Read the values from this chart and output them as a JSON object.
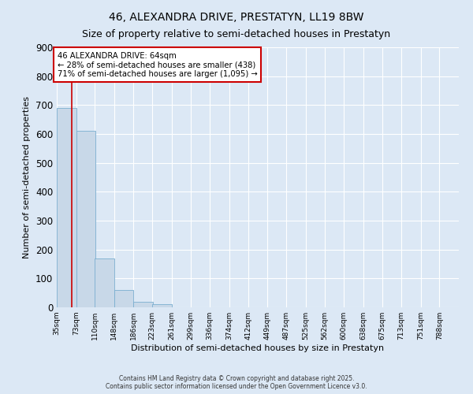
{
  "title": "46, ALEXANDRA DRIVE, PRESTATYN, LL19 8BW",
  "subtitle": "Size of property relative to semi-detached houses in Prestatyn",
  "xlabel": "Distribution of semi-detached houses by size in Prestatyn",
  "ylabel": "Number of semi-detached properties",
  "bar_values": [
    690,
    610,
    170,
    60,
    18,
    10,
    0,
    0,
    0,
    0,
    0,
    0,
    0,
    0,
    0,
    0,
    0,
    0,
    0,
    0
  ],
  "bin_edges": [
    35,
    73,
    110,
    148,
    186,
    223,
    261,
    299,
    336,
    374,
    412,
    449,
    487,
    525,
    562,
    600,
    638,
    675,
    713,
    751,
    788
  ],
  "bar_color": "#c8d8e8",
  "bar_edge_color": "#7aaed0",
  "property_size": 64,
  "property_line_color": "#cc0000",
  "annotation_line1": "46 ALEXANDRA DRIVE: 64sqm",
  "annotation_line2": "← 28% of semi-detached houses are smaller (438)",
  "annotation_line3": "71% of semi-detached houses are larger (1,095) →",
  "annotation_box_color": "#cc0000",
  "ylim": [
    0,
    900
  ],
  "yticks": [
    0,
    100,
    200,
    300,
    400,
    500,
    600,
    700,
    800,
    900
  ],
  "background_color": "#dce8f5",
  "plot_bg_color": "#dce8f5",
  "footer": "Contains HM Land Registry data © Crown copyright and database right 2025.\nContains public sector information licensed under the Open Government Licence v3.0.",
  "title_fontsize": 10,
  "subtitle_fontsize": 9,
  "grid_color": "#ffffff"
}
